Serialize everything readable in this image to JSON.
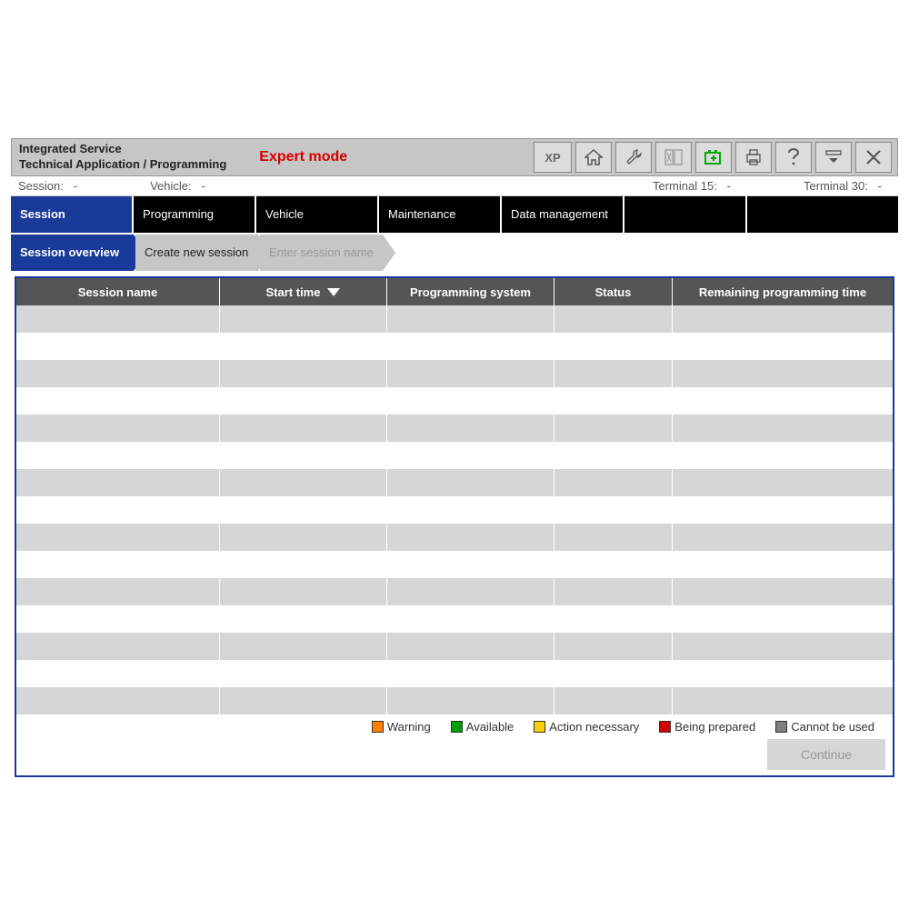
{
  "header": {
    "title_line1": "Integrated Service",
    "title_line2": "Technical Application / Programming",
    "expert_mode": "Expert mode",
    "xp_label": "XP"
  },
  "status": {
    "session_label": "Session:",
    "session_value": "-",
    "vehicle_label": "Vehicle:",
    "vehicle_value": "-",
    "t15_label": "Terminal 15:",
    "t15_value": "-",
    "t30_label": "Terminal 30:",
    "t30_value": "-"
  },
  "main_tabs": [
    {
      "label": "Session",
      "active": true
    },
    {
      "label": "Programming",
      "active": false
    },
    {
      "label": "Vehicle",
      "active": false
    },
    {
      "label": "Maintenance",
      "active": false
    },
    {
      "label": "Data management",
      "active": false
    }
  ],
  "sub_tabs": [
    {
      "label": "Session overview",
      "state": "active"
    },
    {
      "label": "Create new session",
      "state": "normal"
    },
    {
      "label": "Enter session name",
      "state": "disabled"
    }
  ],
  "table": {
    "columns": [
      "Session name",
      "Start time",
      "Programming system",
      "Status",
      "Remaining programming time"
    ],
    "sort_col": 1,
    "row_count": 15,
    "row_colors": {
      "even": "#d6d6d6",
      "odd": "#ffffff"
    },
    "header_bg": "#555555",
    "header_fg": "#ffffff"
  },
  "legend": [
    {
      "label": "Warning",
      "color": "#ff8000"
    },
    {
      "label": "Available",
      "color": "#00a000"
    },
    {
      "label": "Action necessary",
      "color": "#f5d000"
    },
    {
      "label": "Being prepared",
      "color": "#d40000"
    },
    {
      "label": "Cannot be used",
      "color": "#808080"
    }
  ],
  "continue_label": "Continue",
  "colors": {
    "primary": "#1a3a9a",
    "header_bg": "#c6c6c6",
    "expert": "#d40000"
  }
}
